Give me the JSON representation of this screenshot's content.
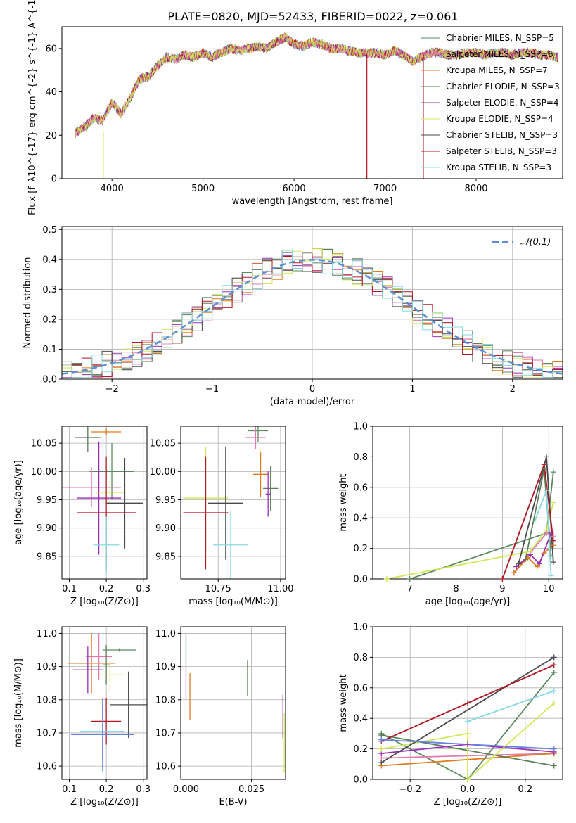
{
  "title": "PLATE=0820, MJD=52433, FIBERID=0022, z=0.061",
  "colors": {
    "c1": "#5b8a5e",
    "c2": "#e07ab0",
    "c3": "#e07b1c",
    "c4": "#5b7e57",
    "c5": "#9b30b8",
    "c6": "#cfe85a",
    "c7": "#4a4a4a",
    "c8": "#b01822",
    "c9": "#86d9e0",
    "blue": "#6682e0",
    "dash": "#5b8ed6"
  },
  "chart_data": [
    {
      "type": "line",
      "ylabel": "Flux [f_λ10^{-17} erg cm^{-2} s^{-1} A^{-1}]",
      "xlabel": "wavelength [Angstrom, rest frame]",
      "xlim": [
        3450,
        8950
      ],
      "ylim": [
        0,
        70
      ],
      "xticks": [
        4000,
        5000,
        6000,
        7000,
        8000
      ],
      "yticks": [
        0,
        20,
        40,
        60
      ],
      "legend_loc": "top-right",
      "spectrum": {
        "x": [
          3600,
          3700,
          3800,
          3900,
          4000,
          4100,
          4200,
          4300,
          4400,
          4500,
          4600,
          4700,
          4800,
          4900,
          5000,
          5100,
          5200,
          5300,
          5400,
          5500,
          5600,
          5700,
          5800,
          5900,
          6000,
          6100,
          6200,
          6300,
          6400,
          6500,
          6600,
          6700,
          6800,
          6900,
          7000,
          7100,
          7200,
          7300,
          7400,
          7500,
          7600,
          7700,
          7800,
          7900,
          8000,
          8100,
          8200,
          8300,
          8400,
          8500,
          8600,
          8700,
          8800,
          8900
        ],
        "y": [
          21,
          24,
          28,
          27,
          35,
          30,
          37,
          46,
          47,
          52,
          56,
          55,
          57,
          56,
          58,
          56,
          58,
          60,
          59,
          60,
          61,
          60,
          63,
          65,
          62,
          61,
          63,
          62,
          60,
          60,
          59,
          58,
          58,
          58,
          57,
          59,
          57,
          54,
          56,
          58,
          58,
          57,
          57,
          58,
          58,
          57,
          58,
          58,
          57,
          58,
          58,
          57,
          57,
          56
        ]
      },
      "series": [
        {
          "name": "Chabrier MILES, N_SSP=5"
        },
        {
          "name": "Salpeter MILES, N_SSP=6"
        },
        {
          "name": "Kroupa MILES, N_SSP=7"
        },
        {
          "name": "Chabrier ELODIE, N_SSP=3"
        },
        {
          "name": "Salpeter ELODIE, N_SSP=4"
        },
        {
          "name": "Kroupa ELODIE, N_SSP=4"
        },
        {
          "name": "Chabrier STELIB, N_SSP=3"
        },
        {
          "name": "Salpeter STELIB, N_SSP=3"
        },
        {
          "name": "Kroupa STELIB, N_SSP=3"
        }
      ]
    },
    {
      "type": "line",
      "ylabel": "Normed distribution",
      "xlabel": "(data-model)/error",
      "xlim": [
        -2.5,
        2.5
      ],
      "ylim": [
        0,
        0.51
      ],
      "xticks": [
        -2,
        -1,
        0,
        1,
        2
      ],
      "yticks": [
        0.0,
        0.1,
        0.2,
        0.3,
        0.4,
        0.5
      ],
      "grid": true,
      "legend_loc": "top-right",
      "reference": {
        "name": "𝒩(0,1)",
        "mean": 0,
        "sigma": 1
      },
      "hist_bins": 50
    },
    {
      "type": "scatter",
      "xlabel": "Z [log10(Z/Z⊙)]",
      "ylabel": "age  [log10(age/yr)]",
      "xlim": [
        0.08,
        0.31
      ],
      "ylim": [
        9.81,
        10.08
      ],
      "xticks": [
        0.1,
        0.2,
        0.3
      ],
      "yticks": [
        9.85,
        9.9,
        9.95,
        10.0,
        10.05
      ],
      "grid": true,
      "points": [
        {
          "x": 0.215,
          "y": 10.0,
          "xerr": 0.06,
          "yerr": 0.05
        },
        {
          "x": 0.16,
          "y": 9.972,
          "xerr": 0.08,
          "yerr": 0.035
        },
        {
          "x": 0.2,
          "y": 10.07,
          "xerr": 0.04,
          "yerr": 0.006
        },
        {
          "x": 0.15,
          "y": 10.06,
          "xerr": 0.035,
          "yerr": 0.025
        },
        {
          "x": 0.18,
          "y": 9.953,
          "xerr": 0.06,
          "yerr": 0.1
        },
        {
          "x": 0.21,
          "y": 9.963,
          "xerr": 0.04,
          "yerr": 0.02
        },
        {
          "x": 0.25,
          "y": 9.944,
          "xerr": 0.05,
          "yerr": 0.08
        },
        {
          "x": 0.2,
          "y": 9.927,
          "xerr": 0.08,
          "yerr": 0.1
        },
        {
          "x": 0.2,
          "y": 9.87,
          "xerr": 0.035,
          "yerr": 0.05
        }
      ]
    },
    {
      "type": "scatter",
      "xlabel": "mass [log10(M/M⊙)]",
      "ylabel": "",
      "xlim": [
        10.6,
        11.02
      ],
      "ylim": [
        9.81,
        10.08
      ],
      "xticks": [
        10.75,
        11.0
      ],
      "yticks": [
        9.85,
        9.9,
        9.95,
        10.0,
        10.05
      ],
      "grid": true,
      "points": [
        {
          "x": 10.91,
          "y": 10.072,
          "xerr": 0.04,
          "yerr": 0.02
        },
        {
          "x": 10.9,
          "y": 10.06,
          "xerr": 0.04,
          "yerr": 0.02
        },
        {
          "x": 10.92,
          "y": 9.995,
          "xerr": 0.03,
          "yerr": 0.04
        },
        {
          "x": 10.96,
          "y": 9.97,
          "xerr": 0.03,
          "yerr": 0.04
        },
        {
          "x": 10.95,
          "y": 9.96,
          "xerr": 0.01,
          "yerr": 0.04
        },
        {
          "x": 10.7,
          "y": 9.953,
          "xerr": 0.09,
          "yerr": 0.09
        },
        {
          "x": 10.78,
          "y": 9.944,
          "xerr": 0.07,
          "yerr": 0.1
        },
        {
          "x": 10.7,
          "y": 9.927,
          "xerr": 0.09,
          "yerr": 0.1
        },
        {
          "x": 10.8,
          "y": 9.87,
          "xerr": 0.07,
          "yerr": 0.06
        }
      ]
    },
    {
      "type": "line",
      "xlabel": "age  [log10(age/yr)]",
      "ylabel": "mass weight",
      "xlim": [
        6.2,
        10.3
      ],
      "ylim": [
        0,
        1.0
      ],
      "xticks": [
        7,
        8,
        9,
        10
      ],
      "yticks": [
        0.0,
        0.2,
        0.4,
        0.6,
        0.8,
        1.0
      ],
      "grid": true,
      "series": [
        {
          "x": [
            7.0,
            9.95,
            10.1
          ],
          "y": [
            0.0,
            0.3,
            0.7
          ]
        },
        {
          "x": [
            9.25,
            9.95,
            10.1
          ],
          "y": [
            0.04,
            0.3,
            0.28
          ]
        },
        {
          "x": [
            9.25,
            9.55,
            9.75,
            9.9,
            10.1
          ],
          "y": [
            0.04,
            0.14,
            0.08,
            0.17,
            0.22
          ]
        },
        {
          "x": [
            9.5,
            9.9,
            10.05
          ],
          "y": [
            0.13,
            0.72,
            0.15
          ]
        },
        {
          "x": [
            9.3,
            9.6,
            9.8,
            10.05
          ],
          "y": [
            0.08,
            0.16,
            0.1,
            0.3
          ]
        },
        {
          "x": [
            6.5,
            9.6,
            9.95,
            10.1
          ],
          "y": [
            0.0,
            0.18,
            0.32,
            0.5
          ]
        },
        {
          "x": [
            9.35,
            9.95,
            10.1
          ],
          "y": [
            0.1,
            0.8,
            0.11
          ]
        },
        {
          "x": [
            9.0,
            9.9,
            10.1
          ],
          "y": [
            0.0,
            0.75,
            0.25
          ]
        },
        {
          "x": [
            9.7,
            9.95,
            10.05
          ],
          "y": [
            0.38,
            0.58,
            0.02
          ]
        }
      ]
    },
    {
      "type": "scatter",
      "xlabel": "Z [log10(Z/Z⊙)]",
      "ylabel": "mass [log10(M/M⊙)]",
      "xlim": [
        0.08,
        0.31
      ],
      "ylim": [
        10.56,
        11.02
      ],
      "xticks": [
        0.1,
        0.2,
        0.3
      ],
      "yticks": [
        10.6,
        10.7,
        10.8,
        10.9,
        11.0
      ],
      "grid": true,
      "points": [
        {
          "x": 0.235,
          "y": 10.95,
          "xerr": 0.045,
          "yerr": 0.005
        },
        {
          "x": 0.18,
          "y": 10.93,
          "xerr": 0.035,
          "yerr": 0.07
        },
        {
          "x": 0.16,
          "y": 10.91,
          "xerr": 0.065,
          "yerr": 0.09
        },
        {
          "x": 0.2,
          "y": 10.905,
          "xerr": 0.01,
          "yerr": 0.06
        },
        {
          "x": 0.15,
          "y": 10.89,
          "xerr": 0.04,
          "yerr": 0.07
        },
        {
          "x": 0.21,
          "y": 10.875,
          "xerr": 0.04,
          "yerr": 0.05
        },
        {
          "x": 0.26,
          "y": 10.785,
          "xerr": 0.05,
          "yerr": 0.1
        },
        {
          "x": 0.2,
          "y": 10.735,
          "xerr": 0.04,
          "yerr": 0.07
        },
        {
          "x": 0.19,
          "y": 10.705,
          "xerr": 0.06,
          "yerr": 0.1
        },
        {
          "x": 0.19,
          "y": 10.695,
          "xerr": 0.085,
          "yerr": 0.11
        }
      ]
    },
    {
      "type": "scatter",
      "xlabel": "E(B-V)",
      "ylabel": "",
      "xlim": [
        -0.002,
        0.038
      ],
      "ylim": [
        10.56,
        11.02
      ],
      "xticks": [
        0.0,
        0.025
      ],
      "yticks": [
        10.6,
        10.7,
        10.8,
        10.9,
        11.0
      ],
      "grid": true,
      "points": [
        {
          "x": 0.0,
          "y": 10.95,
          "xerr": 0,
          "yerr": 0.05
        },
        {
          "x": 0.0,
          "y": 10.85,
          "xerr": 0,
          "yerr": 0.05
        },
        {
          "x": 0.0015,
          "y": 10.81,
          "xerr": 0,
          "yerr": 0.07
        },
        {
          "x": 0.0235,
          "y": 10.865,
          "xerr": 0,
          "yerr": 0.055
        },
        {
          "x": 0.037,
          "y": 10.75,
          "xerr": 0,
          "yerr": 0.065
        },
        {
          "x": 0.0375,
          "y": 10.67,
          "xerr": 0,
          "yerr": 0.09
        }
      ]
    },
    {
      "type": "line",
      "xlabel": "Z [log10(Z/Z⊙)]",
      "ylabel": "mass weight",
      "xlim": [
        -0.33,
        0.33
      ],
      "ylim": [
        0,
        1.0
      ],
      "xticks": [
        -0.2,
        0.0,
        0.2
      ],
      "yticks": [
        0.0,
        0.2,
        0.4,
        0.6,
        0.8,
        1.0
      ],
      "grid": true,
      "series": [
        {
          "x": [
            -0.3,
            0.0,
            0.3
          ],
          "y": [
            0.3,
            0.0,
            0.7
          ]
        },
        {
          "x": [
            -0.3,
            0.3
          ],
          "y": [
            0.14,
            0.17
          ]
        },
        {
          "x": [
            -0.3,
            0.3
          ],
          "y": [
            0.09,
            0.17
          ]
        },
        {
          "x": [
            -0.3,
            0.3
          ],
          "y": [
            0.29,
            0.09
          ]
        },
        {
          "x": [
            -0.3,
            0.0,
            0.3
          ],
          "y": [
            0.17,
            0.23,
            0.18
          ]
        },
        {
          "x": [
            -0.3,
            0.0,
            0.0,
            0.3
          ],
          "y": [
            0.2,
            0.3,
            0.0,
            0.5
          ]
        },
        {
          "x": [
            -0.3,
            0.3
          ],
          "y": [
            0.11,
            0.8
          ]
        },
        {
          "x": [
            -0.3,
            0.0,
            0.3
          ],
          "y": [
            0.25,
            0.5,
            0.75
          ]
        },
        {
          "x": [
            0.0,
            0.3
          ],
          "y": [
            0.38,
            0.58
          ]
        },
        {
          "x": [
            -0.3,
            0.3
          ],
          "y": [
            0.26,
            0.2
          ]
        }
      ]
    }
  ]
}
